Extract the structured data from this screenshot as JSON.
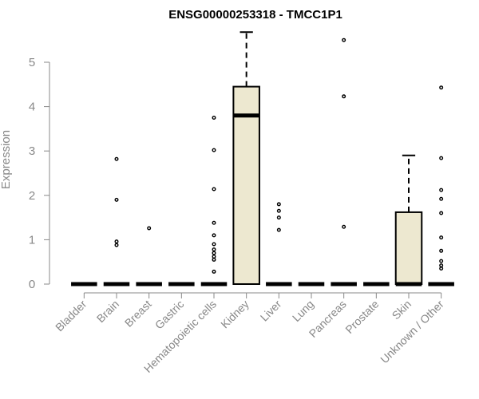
{
  "chart_data": {
    "type": "boxplot",
    "title": "ENSG00000253318 - TMCC1P1",
    "ylabel": "Expression",
    "xlabel": "",
    "ylim": [
      0,
      5.5
    ],
    "yticks": [
      0,
      1,
      2,
      3,
      4,
      5
    ],
    "grid": false,
    "box_color": "#ede8d0",
    "categories": [
      "Bladder",
      "Brain",
      "Breast",
      "Gastric",
      "Hematopoietic cells",
      "Kidney",
      "Liver",
      "Lung",
      "Pancreas",
      "Prostate",
      "Skin",
      "Unknown / Other"
    ],
    "boxes": [
      {
        "category": "Bladder",
        "q1": 0,
        "median": 0,
        "q3": 0,
        "whisker_low": 0,
        "whisker_high": 0,
        "outliers": []
      },
      {
        "category": "Brain",
        "q1": 0,
        "median": 0,
        "q3": 0,
        "whisker_low": 0,
        "whisker_high": 0,
        "outliers": [
          0.88,
          0.96,
          1.9,
          2.82
        ]
      },
      {
        "category": "Breast",
        "q1": 0,
        "median": 0,
        "q3": 0,
        "whisker_low": 0,
        "whisker_high": 0,
        "outliers": [
          1.26
        ]
      },
      {
        "category": "Gastric",
        "q1": 0,
        "median": 0,
        "q3": 0,
        "whisker_low": 0,
        "whisker_high": 0,
        "outliers": []
      },
      {
        "category": "Hematopoietic cells",
        "q1": 0,
        "median": 0,
        "q3": 0,
        "whisker_low": 0,
        "whisker_high": 0,
        "outliers": [
          0.28,
          0.55,
          0.62,
          0.7,
          0.78,
          0.9,
          1.1,
          1.38,
          2.14,
          3.02,
          3.75
        ]
      },
      {
        "category": "Kidney",
        "q1": 0,
        "median": 3.8,
        "q3": 4.45,
        "whisker_low": 0,
        "whisker_high": 5.68,
        "outliers": []
      },
      {
        "category": "Liver",
        "q1": 0,
        "median": 0,
        "q3": 0,
        "whisker_low": 0,
        "whisker_high": 0,
        "outliers": [
          1.22,
          1.5,
          1.65,
          1.8
        ]
      },
      {
        "category": "Lung",
        "q1": 0,
        "median": 0,
        "q3": 0,
        "whisker_low": 0,
        "whisker_high": 0,
        "outliers": []
      },
      {
        "category": "Pancreas",
        "q1": 0,
        "median": 0,
        "q3": 0,
        "whisker_low": 0,
        "whisker_high": 0,
        "outliers": [
          1.29,
          4.23,
          5.5
        ]
      },
      {
        "category": "Prostate",
        "q1": 0,
        "median": 0,
        "q3": 0,
        "whisker_low": 0,
        "whisker_high": 0,
        "outliers": []
      },
      {
        "category": "Skin",
        "q1": 0,
        "median": 0,
        "q3": 1.62,
        "whisker_low": 0,
        "whisker_high": 2.9,
        "outliers": []
      },
      {
        "category": "Unknown / Other",
        "q1": 0,
        "median": 0,
        "q3": 0,
        "whisker_low": 0,
        "whisker_high": 0,
        "outliers": [
          0.35,
          0.42,
          0.52,
          0.75,
          1.05,
          1.6,
          1.92,
          2.12,
          2.84,
          4.43
        ]
      }
    ]
  }
}
